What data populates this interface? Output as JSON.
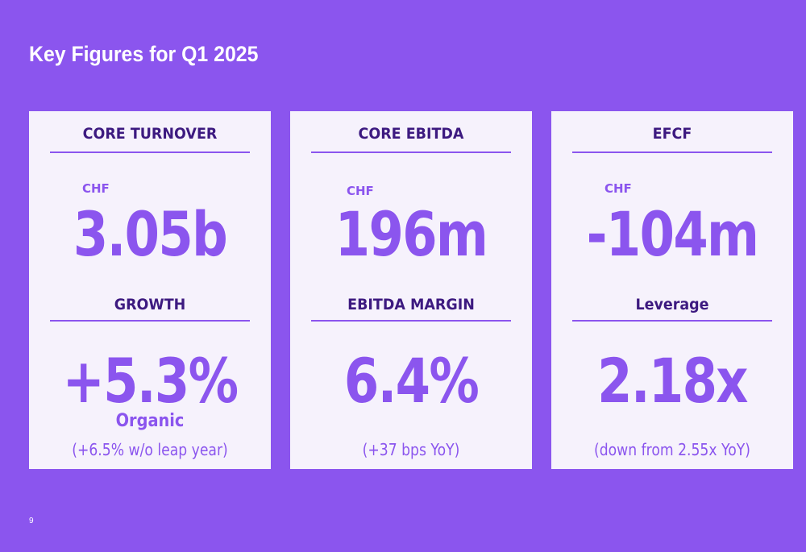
{
  "title": "Key Figures for Q1 2025",
  "page_number": "9",
  "cards": [
    {
      "heading": "CORE TURNOVER",
      "currency": "CHF",
      "value": "3.05b",
      "second_heading": "GROWTH",
      "second_value": "+5.3%",
      "second_sub": "Organic",
      "note": "(+6.5% w/o leap year)"
    },
    {
      "heading": "CORE EBITDA",
      "currency": "CHF",
      "value": "196m",
      "second_heading": "EBITDA MARGIN",
      "second_value": "6.4%",
      "note": "(+37 bps YoY)"
    },
    {
      "heading": "EFCF",
      "currency": "CHF",
      "value": "-104m",
      "second_heading": "Leverage",
      "second_value": "2.18x",
      "note": "(down from 2.55x YoY)"
    }
  ],
  "colors": {
    "background": "#8b55ee",
    "card": "#f6f2fc",
    "accent": "#8b55ee",
    "heading": "#3d1a80"
  }
}
